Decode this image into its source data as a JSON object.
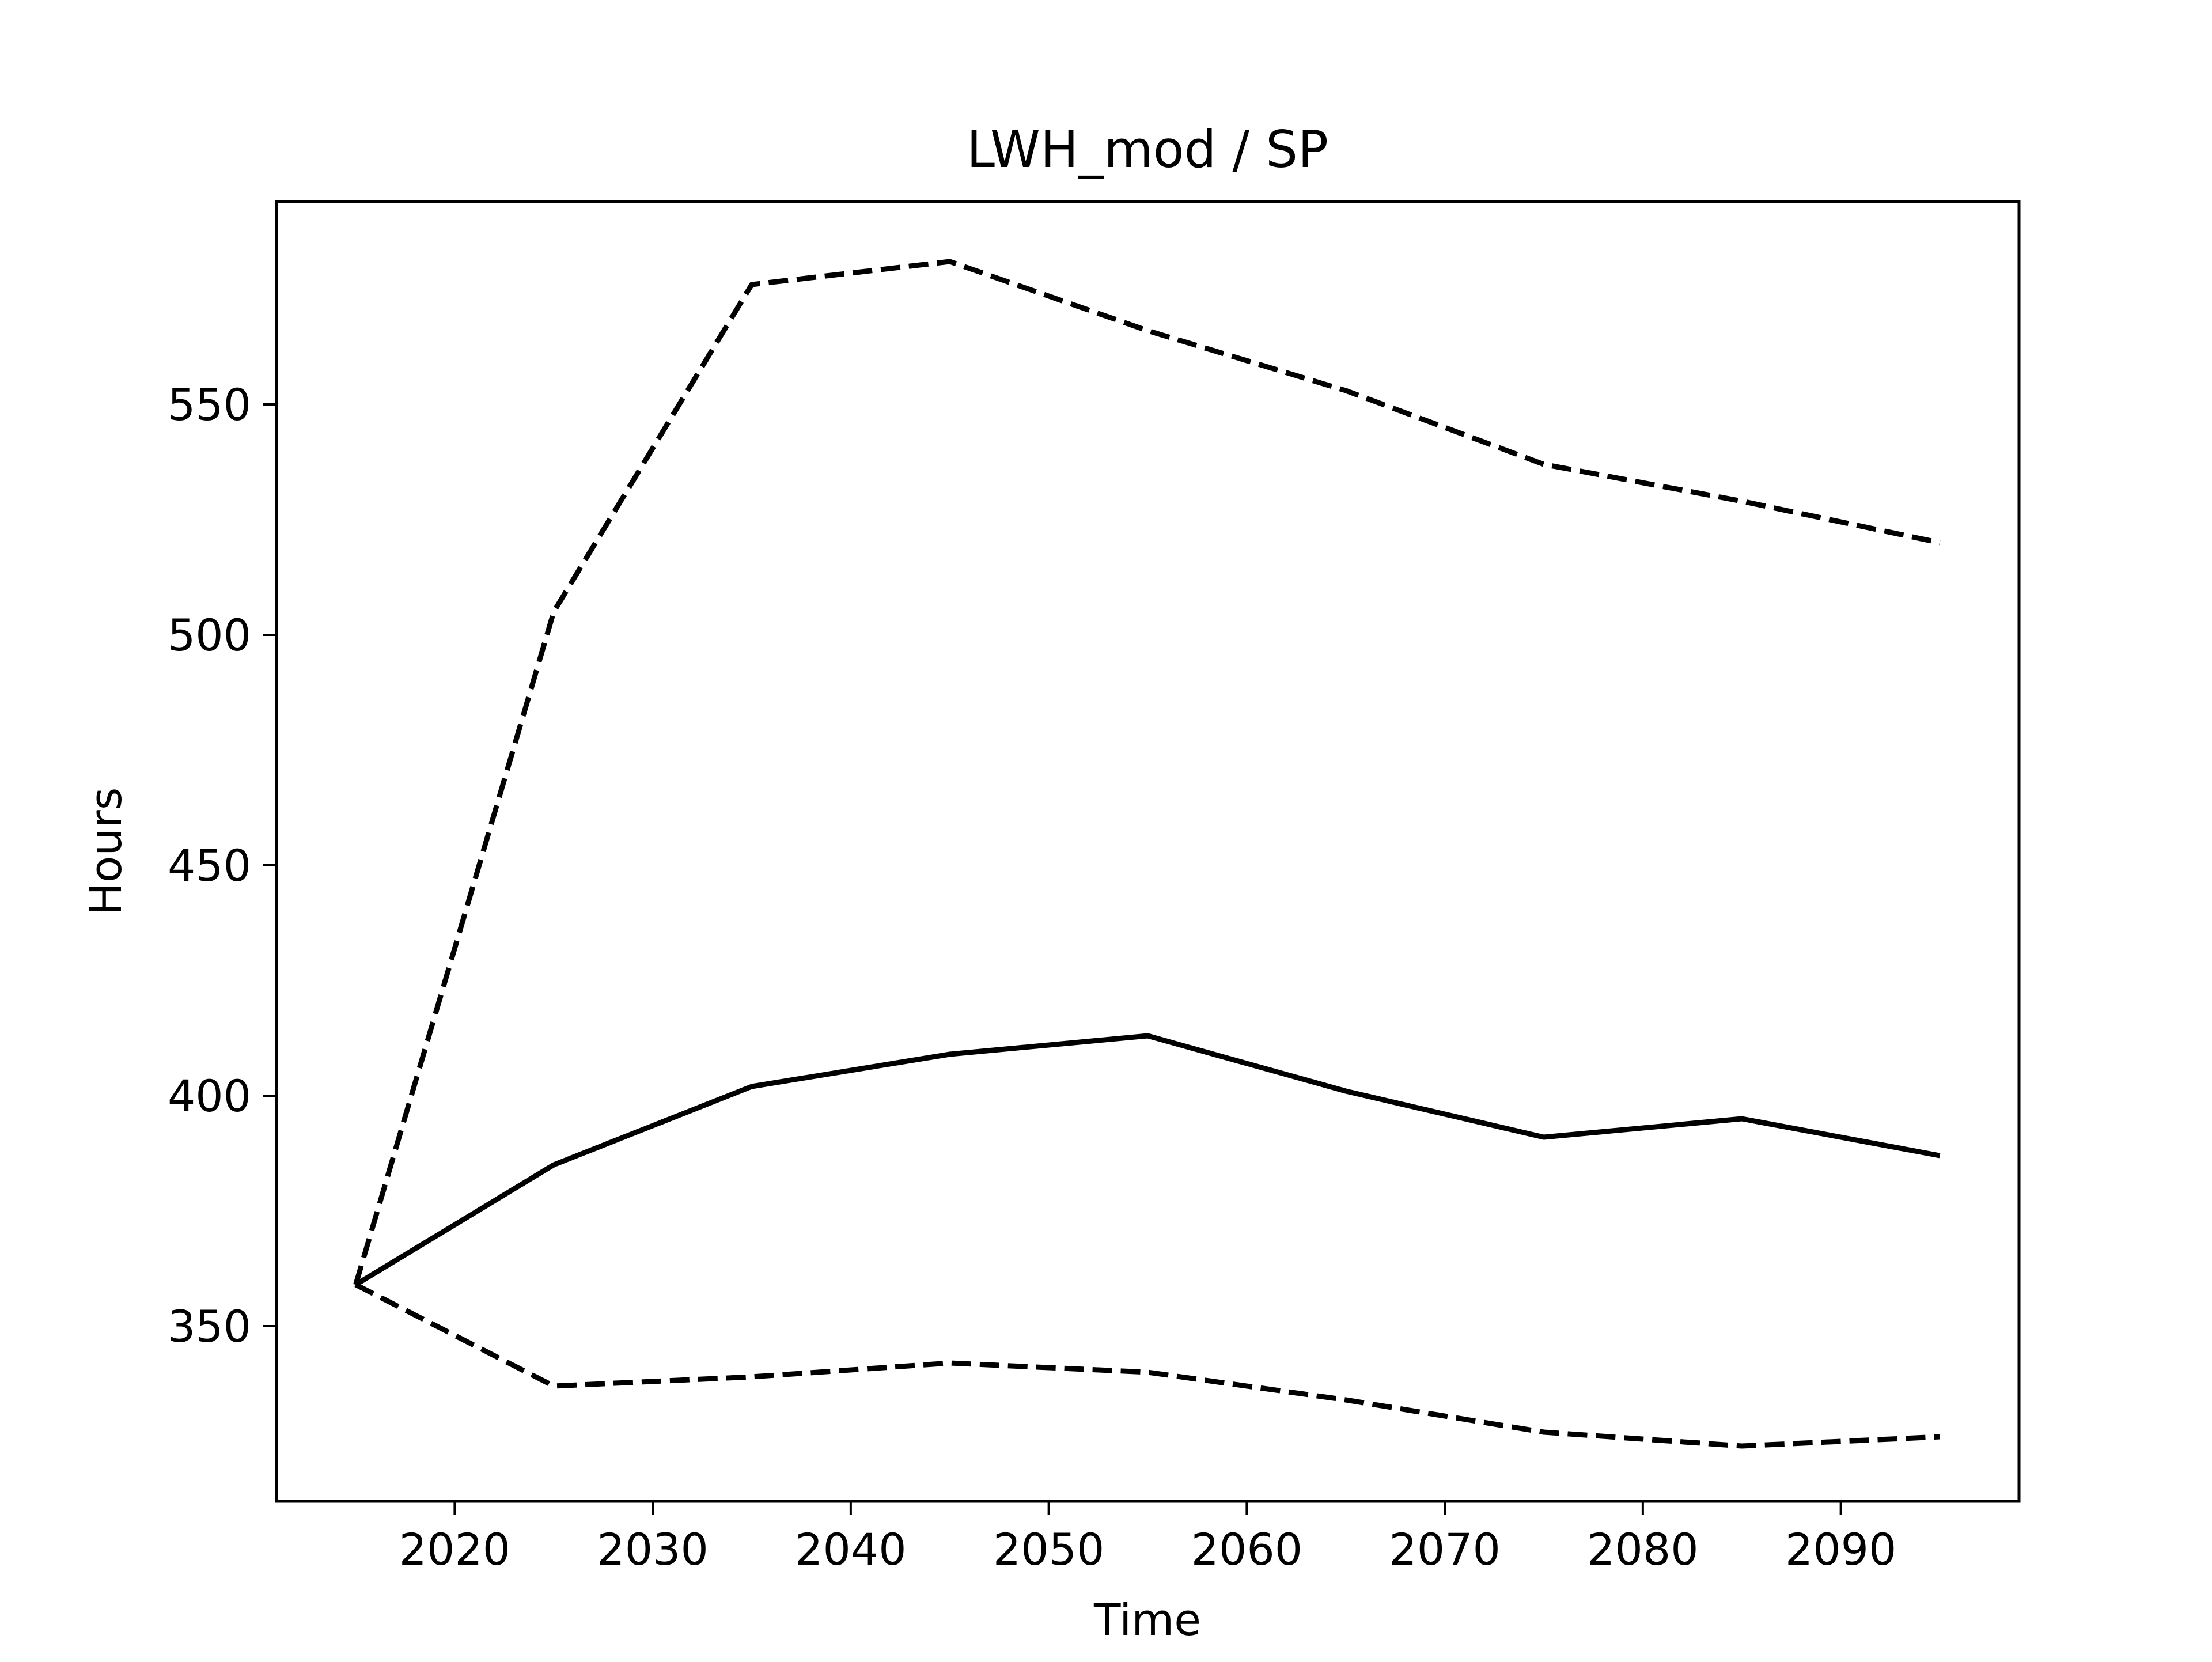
{
  "chart_data": {
    "type": "line",
    "title": "LWH_mod / SP",
    "xlabel": "Time",
    "ylabel": "Hours",
    "xlim": [
      2011,
      2099
    ],
    "ylim": [
      312,
      594
    ],
    "xticks": [
      2020,
      2030,
      2040,
      2050,
      2060,
      2070,
      2080,
      2090
    ],
    "yticks": [
      350,
      400,
      450,
      500,
      550
    ],
    "grid": false,
    "legend": "none",
    "x": [
      2015,
      2025,
      2035,
      2045,
      2055,
      2065,
      2075,
      2085,
      2095
    ],
    "series": [
      {
        "style": "solid",
        "color": "#000000",
        "values": [
          359,
          385,
          402,
          409,
          413,
          401,
          391,
          395,
          387
        ]
      },
      {
        "style": "dashed",
        "color": "#000000",
        "values": [
          359,
          505,
          576,
          581,
          566,
          553,
          537,
          529,
          520
        ]
      },
      {
        "style": "dashed",
        "color": "#000000",
        "values": [
          359,
          337,
          339,
          342,
          340,
          334,
          327,
          324,
          326
        ]
      }
    ]
  }
}
